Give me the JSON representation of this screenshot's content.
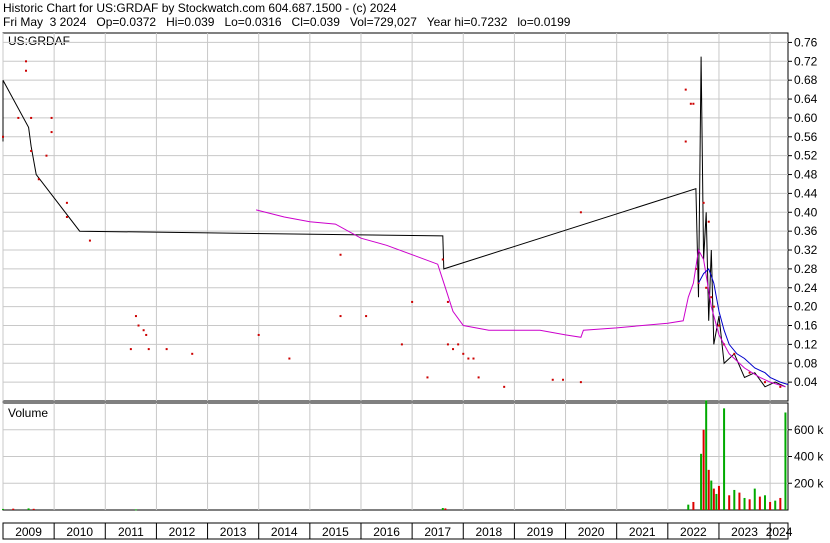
{
  "header": {
    "line1": "Historic Chart for US:GRDAF by Stockwatch.com 604.687.1500 - (c) 2024",
    "line2": "Fri May  3 2024   Op=0.0372   Hi=0.039   Lo=0.0316   Cl=0.039   Vol=729,027   Year hi=0.7232   lo=0.0199"
  },
  "colors": {
    "price": "#000000",
    "trade_dot": "#cc0000",
    "ma_long": "#cc00cc",
    "ma_short": "#0000cc",
    "vol_up": "#00aa00",
    "vol_down": "#dd0000",
    "grid": "#c8c8c8"
  },
  "chart_data": [
    {
      "type": "line",
      "title": "US:GRDAF",
      "xlabel": "",
      "ylabel": "",
      "x_ticks": [
        "2009",
        "2010",
        "2011",
        "2012",
        "2013",
        "2014",
        "2015",
        "2016",
        "2017",
        "2018",
        "2019",
        "2020",
        "2021",
        "2022",
        "2023",
        "2024"
      ],
      "y_ticks": [
        "0.76",
        "0.72",
        "0.68",
        "0.64",
        "0.60",
        "0.56",
        "0.52",
        "0.48",
        "0.44",
        "0.40",
        "0.36",
        "0.32",
        "0.28",
        "0.24",
        "0.20",
        "0.16",
        "0.12",
        "0.08",
        "0.04"
      ],
      "xlim": [
        2009.0,
        2024.35
      ],
      "ylim": [
        0.0,
        0.78
      ],
      "grid": true,
      "series": [
        {
          "kind": "price_range",
          "points": [
            [
              2009.0,
              0.55
            ],
            [
              2009.0,
              0.68
            ],
            [
              2009.5,
              0.58
            ],
            [
              2009.55,
              0.54
            ],
            [
              2009.65,
              0.48
            ],
            [
              2010.5,
              0.36
            ],
            [
              2017.6,
              0.35
            ],
            [
              2017.62,
              0.28
            ],
            [
              2022.55,
              0.45
            ],
            [
              2022.6,
              0.22
            ],
            [
              2022.65,
              0.73
            ],
            [
              2022.7,
              0.3
            ],
            [
              2022.75,
              0.4
            ],
            [
              2022.8,
              0.17
            ],
            [
              2022.85,
              0.32
            ],
            [
              2022.9,
              0.12
            ],
            [
              2023.0,
              0.18
            ],
            [
              2023.1,
              0.08
            ],
            [
              2023.3,
              0.1
            ],
            [
              2023.5,
              0.05
            ],
            [
              2023.7,
              0.06
            ],
            [
              2023.9,
              0.03
            ],
            [
              2024.1,
              0.04
            ],
            [
              2024.3,
              0.03
            ]
          ]
        },
        {
          "kind": "trades",
          "points": [
            [
              2009.0,
              0.56
            ],
            [
              2009.3,
              0.6
            ],
            [
              2009.45,
              0.72
            ],
            [
              2009.45,
              0.7
            ],
            [
              2009.55,
              0.6
            ],
            [
              2009.55,
              0.53
            ],
            [
              2009.7,
              0.47
            ],
            [
              2009.85,
              0.52
            ],
            [
              2009.95,
              0.6
            ],
            [
              2009.95,
              0.57
            ],
            [
              2010.25,
              0.42
            ],
            [
              2010.25,
              0.39
            ],
            [
              2010.7,
              0.34
            ],
            [
              2011.5,
              0.11
            ],
            [
              2011.6,
              0.18
            ],
            [
              2011.65,
              0.16
            ],
            [
              2011.75,
              0.15
            ],
            [
              2011.8,
              0.14
            ],
            [
              2011.85,
              0.11
            ],
            [
              2012.2,
              0.11
            ],
            [
              2012.7,
              0.1
            ],
            [
              2014.0,
              0.14
            ],
            [
              2014.6,
              0.09
            ],
            [
              2015.6,
              0.31
            ],
            [
              2015.6,
              0.18
            ],
            [
              2016.1,
              0.18
            ],
            [
              2016.8,
              0.12
            ],
            [
              2017.0,
              0.21
            ],
            [
              2017.3,
              0.05
            ],
            [
              2017.6,
              0.3
            ],
            [
              2017.7,
              0.21
            ],
            [
              2017.7,
              0.12
            ],
            [
              2017.8,
              0.11
            ],
            [
              2017.9,
              0.12
            ],
            [
              2018.0,
              0.1
            ],
            [
              2018.1,
              0.09
            ],
            [
              2018.2,
              0.09
            ],
            [
              2018.3,
              0.05
            ],
            [
              2018.8,
              0.03
            ],
            [
              2019.75,
              0.045
            ],
            [
              2019.95,
              0.045
            ],
            [
              2020.3,
              0.04
            ],
            [
              2020.3,
              0.4
            ],
            [
              2022.35,
              0.66
            ],
            [
              2022.35,
              0.55
            ],
            [
              2022.45,
              0.63
            ],
            [
              2022.5,
              0.63
            ],
            [
              2022.55,
              0.28
            ],
            [
              2022.6,
              0.25
            ],
            [
              2022.7,
              0.42
            ],
            [
              2022.75,
              0.24
            ],
            [
              2022.8,
              0.38
            ],
            [
              2022.85,
              0.22
            ],
            [
              2022.9,
              0.2
            ],
            [
              2023.0,
              0.16
            ],
            [
              2023.1,
              0.12
            ],
            [
              2023.3,
              0.1
            ],
            [
              2023.6,
              0.06
            ],
            [
              2023.9,
              0.04
            ],
            [
              2024.2,
              0.03
            ]
          ]
        },
        {
          "kind": "ma_long",
          "points": [
            [
              2013.95,
              0.405
            ],
            [
              2014.5,
              0.39
            ],
            [
              2015.0,
              0.38
            ],
            [
              2015.5,
              0.375
            ],
            [
              2016.0,
              0.345
            ],
            [
              2016.5,
              0.33
            ],
            [
              2017.0,
              0.31
            ],
            [
              2017.5,
              0.29
            ],
            [
              2017.65,
              0.24
            ],
            [
              2017.8,
              0.19
            ],
            [
              2018.0,
              0.16
            ],
            [
              2018.5,
              0.15
            ],
            [
              2019.0,
              0.15
            ],
            [
              2019.5,
              0.15
            ],
            [
              2020.0,
              0.14
            ],
            [
              2020.3,
              0.135
            ],
            [
              2020.35,
              0.15
            ],
            [
              2021.0,
              0.155
            ],
            [
              2021.5,
              0.16
            ],
            [
              2022.0,
              0.165
            ],
            [
              2022.3,
              0.17
            ],
            [
              2022.4,
              0.22
            ],
            [
              2022.5,
              0.25
            ],
            [
              2022.6,
              0.32
            ],
            [
              2022.7,
              0.3
            ],
            [
              2022.85,
              0.2
            ],
            [
              2023.0,
              0.14
            ],
            [
              2023.2,
              0.1
            ],
            [
              2023.5,
              0.07
            ],
            [
              2023.8,
              0.05
            ],
            [
              2024.0,
              0.04
            ],
            [
              2024.3,
              0.03
            ]
          ]
        },
        {
          "kind": "ma_short",
          "points": [
            [
              2022.6,
              0.25
            ],
            [
              2022.7,
              0.27
            ],
            [
              2022.8,
              0.28
            ],
            [
              2022.9,
              0.25
            ],
            [
              2023.0,
              0.19
            ],
            [
              2023.1,
              0.15
            ],
            [
              2023.2,
              0.12
            ],
            [
              2023.35,
              0.1
            ],
            [
              2023.5,
              0.09
            ],
            [
              2023.7,
              0.07
            ],
            [
              2023.9,
              0.06
            ],
            [
              2024.0,
              0.05
            ],
            [
              2024.2,
              0.04
            ],
            [
              2024.35,
              0.035
            ]
          ]
        }
      ]
    },
    {
      "type": "bar",
      "title": "Volume",
      "xlabel": "",
      "ylabel": "",
      "y_ticks": [
        "600 k",
        "400 k",
        "200 k"
      ],
      "ylim": [
        0,
        800000
      ],
      "grid": true,
      "series": [
        {
          "name": "up",
          "points": [
            [
              2009.0,
              8000
            ],
            [
              2009.5,
              12000
            ],
            [
              2011.6,
              5000
            ],
            [
              2017.6,
              15000
            ],
            [
              2022.4,
              40000
            ],
            [
              2022.65,
              420000
            ],
            [
              2022.75,
              820000
            ],
            [
              2022.85,
              220000
            ],
            [
              2022.95,
              120000
            ],
            [
              2023.1,
              760000
            ],
            [
              2023.3,
              150000
            ],
            [
              2023.5,
              90000
            ],
            [
              2023.7,
              160000
            ],
            [
              2023.9,
              110000
            ],
            [
              2024.1,
              70000
            ],
            [
              2024.3,
              729027
            ]
          ]
        },
        {
          "name": "down",
          "points": [
            [
              2009.2,
              10000
            ],
            [
              2009.6,
              9000
            ],
            [
              2017.65,
              12000
            ],
            [
              2022.5,
              60000
            ],
            [
              2022.7,
              600000
            ],
            [
              2022.8,
              300000
            ],
            [
              2022.9,
              160000
            ],
            [
              2023.0,
              180000
            ],
            [
              2023.2,
              110000
            ],
            [
              2023.4,
              130000
            ],
            [
              2023.6,
              80000
            ],
            [
              2023.8,
              100000
            ],
            [
              2024.0,
              60000
            ],
            [
              2024.2,
              90000
            ]
          ]
        }
      ]
    }
  ]
}
